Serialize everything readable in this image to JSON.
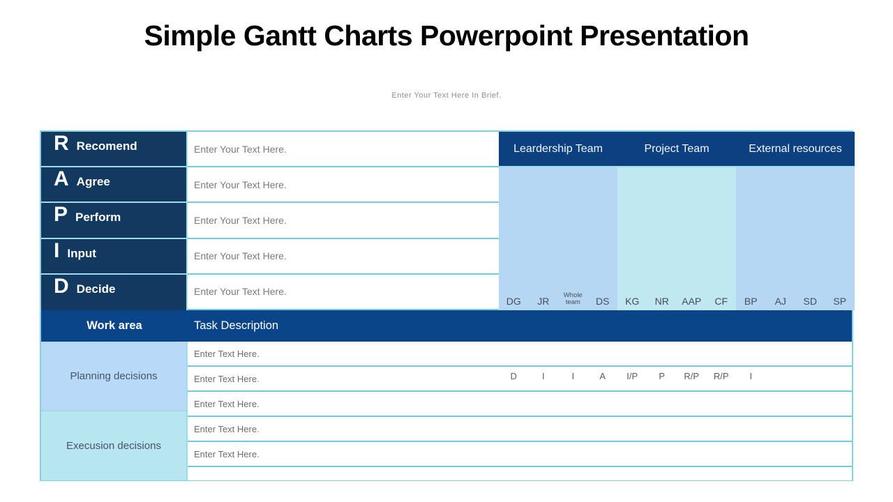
{
  "slide": {
    "title": "Simple Gantt Charts Powerpoint Presentation",
    "subtitle": "Enter Your Text Here In Brief."
  },
  "rapid_matrix": {
    "rows": [
      {
        "letter": "R",
        "label": "Recomend",
        "placeholder": "Enter Your Text Here."
      },
      {
        "letter": "A",
        "label": "Agree",
        "placeholder": "Enter Your Text Here."
      },
      {
        "letter": "P",
        "label": "Perform",
        "placeholder": "Enter Your Text Here."
      },
      {
        "letter": "I",
        "label": "Input",
        "placeholder": "Enter Your Text Here."
      },
      {
        "letter": "D",
        "label": "Decide",
        "placeholder": "Enter Your Text Here."
      }
    ]
  },
  "teams": [
    {
      "name": "Leardership Team",
      "members": [
        "DG",
        "JR",
        "Whole team",
        "DS"
      ]
    },
    {
      "name": "Project Team",
      "members": [
        "KG",
        "NR",
        "AAP",
        "CF"
      ]
    },
    {
      "name": "External resources",
      "members": [
        "BP",
        "AJ",
        "SD",
        "SP"
      ]
    }
  ],
  "work_table": {
    "work_area_header": "Work area",
    "task_description_header": "Task Description",
    "groups": [
      {
        "name": "Planning decisions",
        "tasks": [
          "Enter Text Here.",
          "Enter Text Here.",
          "Enter Text Here."
        ]
      },
      {
        "name": "Execusion decisions",
        "tasks": [
          "Enter Text Here.",
          "Enter Text Here.",
          ""
        ]
      }
    ],
    "assignments": [
      "D",
      "I",
      "I",
      "A",
      "I/P",
      "P",
      "R/P",
      "R/P",
      "I"
    ]
  },
  "colors": {
    "rapid_navy": "#12395f",
    "team_header_navy": "#0d4080",
    "work_header_blue": "#0b4589",
    "light_blue_panel": "#b5d7f4",
    "pale_cyan_panel": "#bfe8f1",
    "planning_cell": "#b9d9f8",
    "execution_cell": "#b7e6f0",
    "border_cyan": "#6fcde0"
  }
}
